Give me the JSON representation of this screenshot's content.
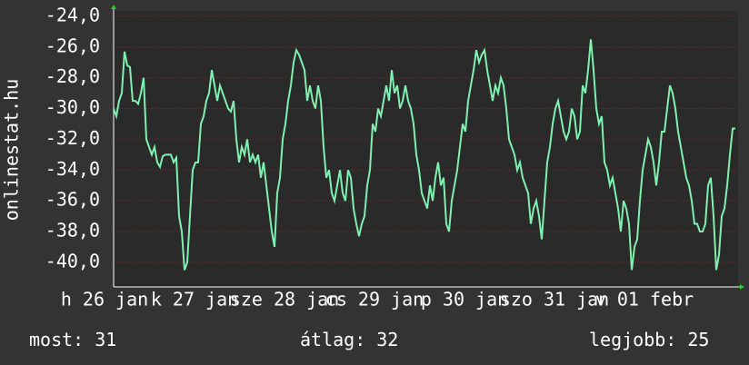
{
  "chart_data": {
    "type": "line",
    "y_label": "onlinestat.hu",
    "x_labels": [
      "h 26 jan",
      "k 27 jan",
      "sze 28 jan",
      "cs 29 jan",
      "p 30 jan",
      "szo 31 jan",
      "v 01 febr"
    ],
    "color": "#80f0b0",
    "ylim": [
      -41.6,
      -23.65
    ],
    "yticks": [
      {
        "value": -24,
        "label": "-24,0"
      },
      {
        "value": -26,
        "label": "-26,0"
      },
      {
        "value": -28,
        "label": "-28,0"
      },
      {
        "value": -30,
        "label": "-30,0"
      },
      {
        "value": -32,
        "label": "-32,0"
      },
      {
        "value": -34,
        "label": "-34,0"
      },
      {
        "value": -36,
        "label": "-36,0"
      },
      {
        "value": -38,
        "label": "-38,0"
      },
      {
        "value": -40,
        "label": "-40,0"
      }
    ],
    "grid": true,
    "values": [
      -30,
      -30.5,
      -29.5,
      -29,
      -26.3,
      -27.2,
      -27.3,
      -29.5,
      -29.5,
      -29.7,
      -29,
      -28,
      -32,
      -32.5,
      -33,
      -32.5,
      -33.5,
      -33.8,
      -33.1,
      -33,
      -33,
      -33,
      -33.5,
      -33.2,
      -37,
      -38,
      -40.5,
      -40,
      -37,
      -34,
      -33.5,
      -33.5,
      -31,
      -30.5,
      -29.5,
      -29,
      -27.5,
      -28.5,
      -29.5,
      -28.5,
      -29,
      -29.5,
      -30,
      -30.2,
      -29.5,
      -32,
      -33.5,
      -32.5,
      -33,
      -32,
      -33.5,
      -33,
      -33.5,
      -33,
      -34.5,
      -33.5,
      -35,
      -36.5,
      -38,
      -39,
      -35.5,
      -34.5,
      -32,
      -31,
      -29.5,
      -28.5,
      -27,
      -26.2,
      -26.5,
      -27,
      -27.5,
      -29.5,
      -28.5,
      -29.5,
      -30,
      -28.5,
      -29.5,
      -32.5,
      -34.5,
      -34,
      -35.5,
      -36,
      -35,
      -34,
      -35.5,
      -36,
      -34,
      -34.5,
      -36.5,
      -37.5,
      -38.3,
      -37.5,
      -37,
      -35,
      -34,
      -31,
      -31.5,
      -30,
      -30.5,
      -29.5,
      -28.5,
      -29.5,
      -27.5,
      -29,
      -28.5,
      -30,
      -29.5,
      -28.5,
      -29.5,
      -30,
      -31,
      -33,
      -34,
      -35.5,
      -36,
      -36.5,
      -35,
      -36,
      -34.5,
      -33.5,
      -35,
      -34.5,
      -37.5,
      -38,
      -36,
      -35,
      -34,
      -32.5,
      -31,
      -31.5,
      -29.5,
      -28.5,
      -27.5,
      -26.2,
      -27,
      -26.5,
      -26.2,
      -27.5,
      -28.5,
      -29.5,
      -28.5,
      -29,
      -28,
      -28.5,
      -30,
      -32,
      -32.5,
      -33,
      -34,
      -33.5,
      -34.5,
      -35,
      -35.5,
      -37.5,
      -36.5,
      -36,
      -37,
      -38.5,
      -36,
      -33.5,
      -32.5,
      -31,
      -30,
      -29.5,
      -30.5,
      -31.5,
      -32,
      -31.5,
      -30,
      -30.5,
      -32,
      -31.5,
      -28.5,
      -29,
      -27.5,
      -25.5,
      -27.5,
      -30,
      -31,
      -30.5,
      -33.5,
      -34,
      -35,
      -34.5,
      -35.5,
      -36.5,
      -38,
      -36,
      -36.5,
      -37.5,
      -40.5,
      -39,
      -38.5,
      -36,
      -34,
      -33,
      -32,
      -32.5,
      -33.5,
      -35,
      -33.5,
      -31.5,
      -31.5,
      -30,
      -28.5,
      -29,
      -30,
      -31.5,
      -32.5,
      -33.5,
      -34.5,
      -35,
      -36,
      -37.5,
      -37.5,
      -38,
      -38,
      -37.5,
      -35,
      -34.5,
      -37,
      -40.5,
      -39.5,
      -37,
      -36.5,
      -35,
      -33,
      -31.3,
      -31.3
    ],
    "stats": [
      {
        "label": "most:",
        "value": 31
      },
      {
        "label": "átlag:",
        "value": 32
      },
      {
        "label": "legjobb:",
        "value": 25
      }
    ]
  }
}
